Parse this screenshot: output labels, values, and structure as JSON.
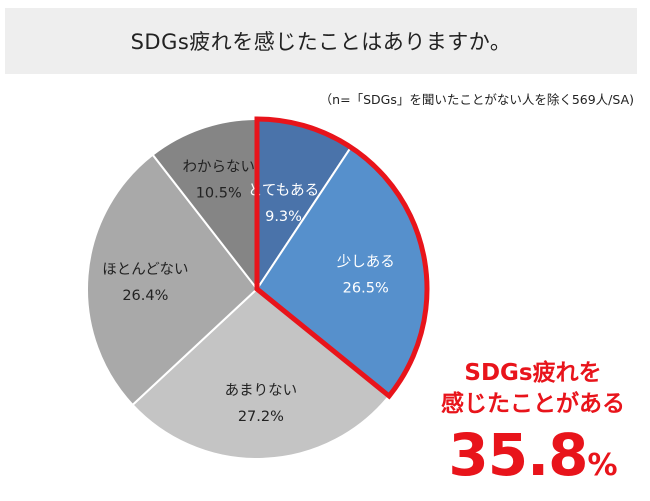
{
  "title": "SDGs疲れを感じたことはありますか。",
  "note": "（n=「SDGs」を聞いたことがない人を除く569人/SA)",
  "callout": {
    "line1": "SDGs疲れを",
    "line2": "感じたことがある",
    "value": "35.8",
    "unit": "%"
  },
  "chart_data": {
    "type": "pie",
    "title": "SDGs疲れを感じたことはありますか。",
    "start": "12 o'clock, clockwise",
    "slices": [
      {
        "label": "とてもある",
        "value": 9.3,
        "value_label": "9.3%",
        "color": "#4a73aa",
        "text_color": "#ffffff"
      },
      {
        "label": "少しある",
        "value": 26.5,
        "value_label": "26.5%",
        "color": "#5690cc",
        "text_color": "#ffffff"
      },
      {
        "label": "あまりない",
        "value": 27.2,
        "value_label": "27.2%",
        "color": "#c4c4c4",
        "text_color": "#222222"
      },
      {
        "label": "ほとんどない",
        "value": 26.4,
        "value_label": "26.4%",
        "color": "#a9a9a9",
        "text_color": "#222222"
      },
      {
        "label": "わからない",
        "value": 10.5,
        "value_label": "10.5%",
        "color": "#858585",
        "text_color": "#222222"
      }
    ],
    "highlight": {
      "slices": [
        "とてもある",
        "少しある"
      ],
      "color": "#e8141b"
    }
  }
}
